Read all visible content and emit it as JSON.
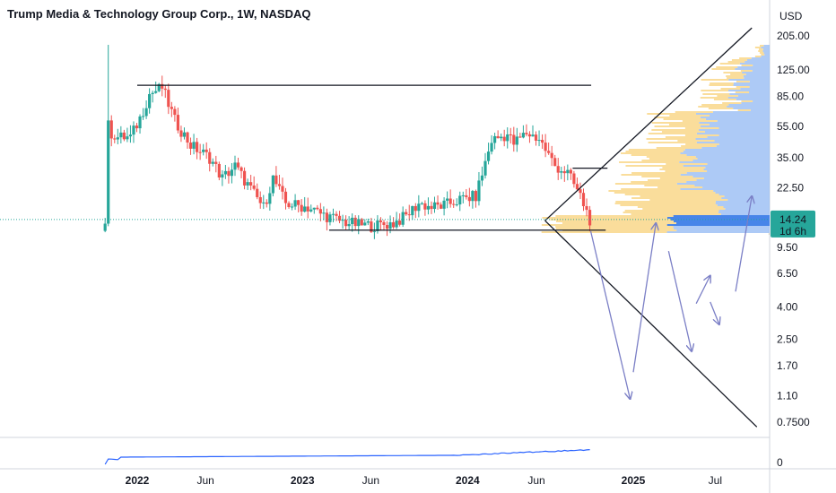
{
  "header": {
    "symbol": "Trump Media & Technology Group Corp., 1W, NASDAQ"
  },
  "price_axis": {
    "currency": "USD"
  },
  "last_price": {
    "value": "14.24",
    "countdown": "1d 6h",
    "color": "#26a69a"
  },
  "colors": {
    "up": "#26a69a",
    "down": "#ef5350",
    "volume_profile_up": "#f8d27a",
    "volume_profile_down": "#8ab4f2",
    "volume_profile_poc": "#3d7ee8",
    "drawing": "#131722",
    "arrow": "#7b7fc6",
    "lower_indicator": "#2962ff"
  },
  "chart_data": {
    "type": "candlestick",
    "title": "Trump Media & Technology Group Corp., 1W, NASDAQ",
    "yscale": "log",
    "ylim": [
      0.6,
      260
    ],
    "y_ticks": [
      "205.00",
      "125.00",
      "85.00",
      "55.00",
      "35.00",
      "22.50",
      "14.24",
      "9.50",
      "6.50",
      "4.00",
      "2.50",
      "1.70",
      "1.10",
      "0.7500"
    ],
    "x_ticks": [
      "2022",
      "Jun",
      "2023",
      "Jun",
      "2024",
      "Jun",
      "2025",
      "Jul"
    ],
    "price_series": [
      [
        "2021-10-22",
        14.0
      ],
      [
        "2021-10-29",
        97.0
      ],
      [
        "2021-11-05",
        50.0
      ],
      [
        "2021-11-19",
        47.0
      ],
      [
        "2021-12-17",
        47.0
      ],
      [
        "2022-01-07",
        62.0
      ],
      [
        "2022-01-28",
        88.0
      ],
      [
        "2022-02-25",
        97.0
      ],
      [
        "2022-03-25",
        60.0
      ],
      [
        "2022-04-29",
        42.0
      ],
      [
        "2022-06-10",
        35.0
      ],
      [
        "2022-07-08",
        26.0
      ],
      [
        "2022-08-05",
        31.0
      ],
      [
        "2022-09-09",
        22.0
      ],
      [
        "2022-10-07",
        17.0
      ],
      [
        "2022-10-28",
        26.0
      ],
      [
        "2022-11-25",
        18.0
      ],
      [
        "2023-01-13",
        17.0
      ],
      [
        "2023-02-10",
        15.5
      ],
      [
        "2023-03-24",
        14.0
      ],
      [
        "2023-05-05",
        13.2
      ],
      [
        "2023-06-09",
        13.0
      ],
      [
        "2023-07-21",
        13.5
      ],
      [
        "2023-08-18",
        15.0
      ],
      [
        "2023-09-15",
        18.0
      ],
      [
        "2023-10-13",
        17.0
      ],
      [
        "2023-11-10",
        17.5
      ],
      [
        "2023-12-15",
        19.0
      ],
      [
        "2024-01-19",
        20.0
      ],
      [
        "2024-02-23",
        45.0
      ],
      [
        "2024-03-29",
        49.0
      ],
      [
        "2024-04-12",
        43.0
      ],
      [
        "2024-05-10",
        50.0
      ],
      [
        "2024-06-07",
        46.0
      ],
      [
        "2024-07-12",
        31.0
      ],
      [
        "2024-08-09",
        28.0
      ],
      [
        "2024-09-06",
        20.0
      ],
      [
        "2024-09-27",
        14.24
      ]
    ],
    "horizontal_lines": [
      {
        "price": 100.0,
        "from": "2022-01-01",
        "to": "2024-09-30"
      },
      {
        "price": 12.2,
        "from": "2023-03-01",
        "to": "2024-11-01"
      }
    ],
    "triangle": {
      "apex": [
        "2024-06-20",
        14.0
      ],
      "upper_end": [
        "2025-09-20",
        230.0
      ],
      "lower_end": [
        "2025-10-01",
        0.7
      ]
    },
    "projection_arrows": [
      [
        [
          "2024-09-29",
          12.0
        ],
        [
          "2024-12-25",
          1.05
        ]
      ],
      [
        [
          "2025-01-01",
          1.55
        ],
        [
          "2025-02-20",
          13.5
        ]
      ],
      [
        [
          "2025-03-20",
          9.0
        ],
        [
          "2025-05-10",
          2.1
        ]
      ],
      [
        [
          "2025-05-20",
          4.2
        ],
        [
          "2025-06-20",
          6.3
        ]
      ],
      [
        [
          "2025-06-20",
          4.3
        ],
        [
          "2025-07-10",
          3.1
        ]
      ],
      [
        [
          "2025-08-15",
          5.0
        ],
        [
          "2025-09-20",
          20.0
        ]
      ]
    ],
    "resistance_tick": {
      "price": 30.0,
      "from": "2024-08-20",
      "to": "2024-11-05"
    }
  },
  "lower_pane": {
    "axis_label": "0"
  }
}
